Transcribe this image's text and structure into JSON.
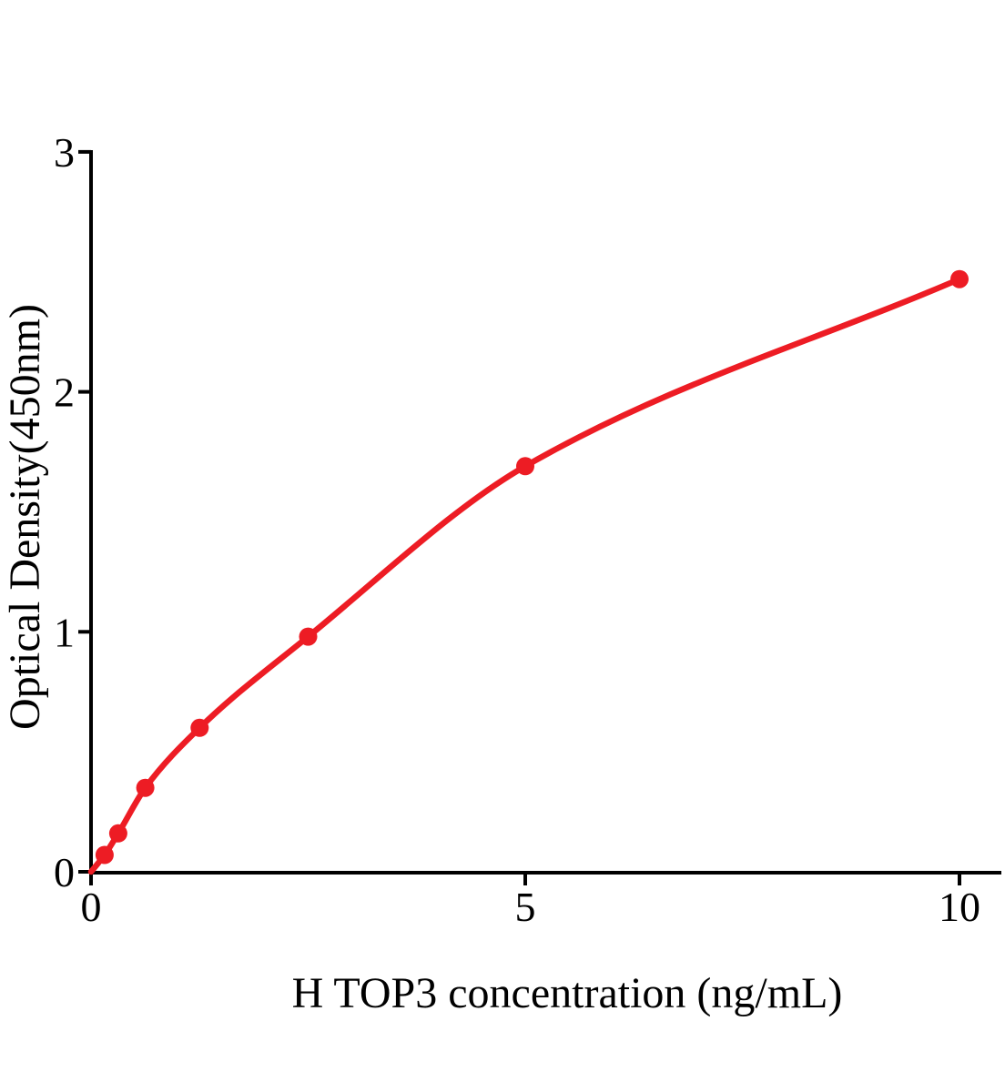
{
  "chart_data": {
    "type": "scatter",
    "title": "",
    "xlabel": "H TOP3 concentration (ng/mL)",
    "ylabel": "Optical Density(450nm)",
    "series": [
      {
        "x": [
          0.156,
          0.313,
          0.625,
          1.25,
          2.5,
          5,
          10
        ],
        "y": [
          0.07,
          0.16,
          0.35,
          0.6,
          0.98,
          1.69,
          2.47
        ],
        "marker": "circle",
        "color": "#ED1C24",
        "line": true,
        "curve_start": [
          0,
          0
        ]
      }
    ],
    "xlim": [
      0,
      10.5
    ],
    "ylim": [
      0,
      3
    ],
    "x_ticks": [
      0,
      5,
      10
    ],
    "y_ticks": [
      0,
      1,
      2,
      3
    ],
    "grid": false,
    "legend": false,
    "axis_color": "#000000",
    "background_color": "#ffffff"
  }
}
